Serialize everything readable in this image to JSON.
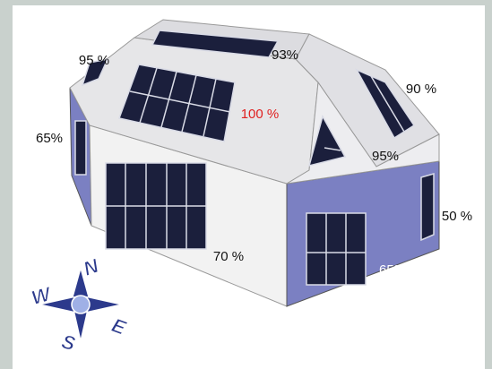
{
  "labels": [
    "95 %",
    "93%",
    "90 %",
    "100 %",
    "65%",
    "95%",
    "70 %",
    "50 %",
    "65%"
  ],
  "compass": [
    "N",
    "E",
    "S",
    "W"
  ]
}
